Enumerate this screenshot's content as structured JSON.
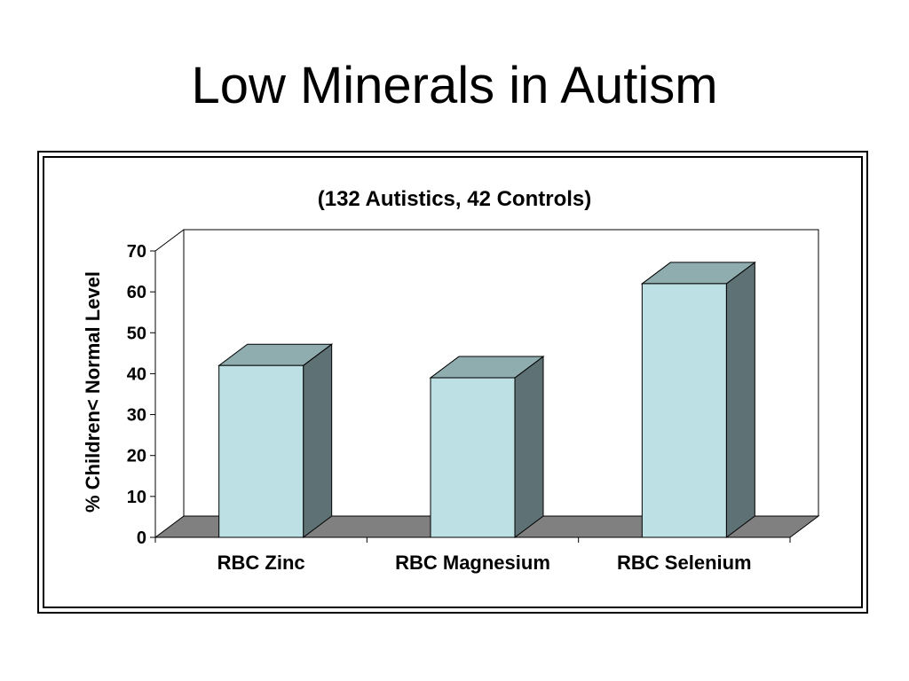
{
  "slide": {
    "title": "Low Minerals in Autism"
  },
  "chart_data": {
    "type": "bar",
    "subtitle": "(132 Autistics, 42 Controls)",
    "ylabel": "% Children< Normal Level",
    "xlabel": "",
    "categories": [
      "RBC Zinc",
      "RBC Magnesium",
      "RBC Selenium"
    ],
    "values": [
      42,
      39,
      62
    ],
    "ylim": [
      0,
      70
    ],
    "yticks": [
      0,
      10,
      20,
      30,
      40,
      50,
      60,
      70
    ],
    "grid": false,
    "legend": "none",
    "style": "3d",
    "colors": {
      "bar_front": "#BCE0E4",
      "bar_top": "#8FACAF",
      "bar_side": "#5E7275",
      "floor": "#808080"
    }
  }
}
